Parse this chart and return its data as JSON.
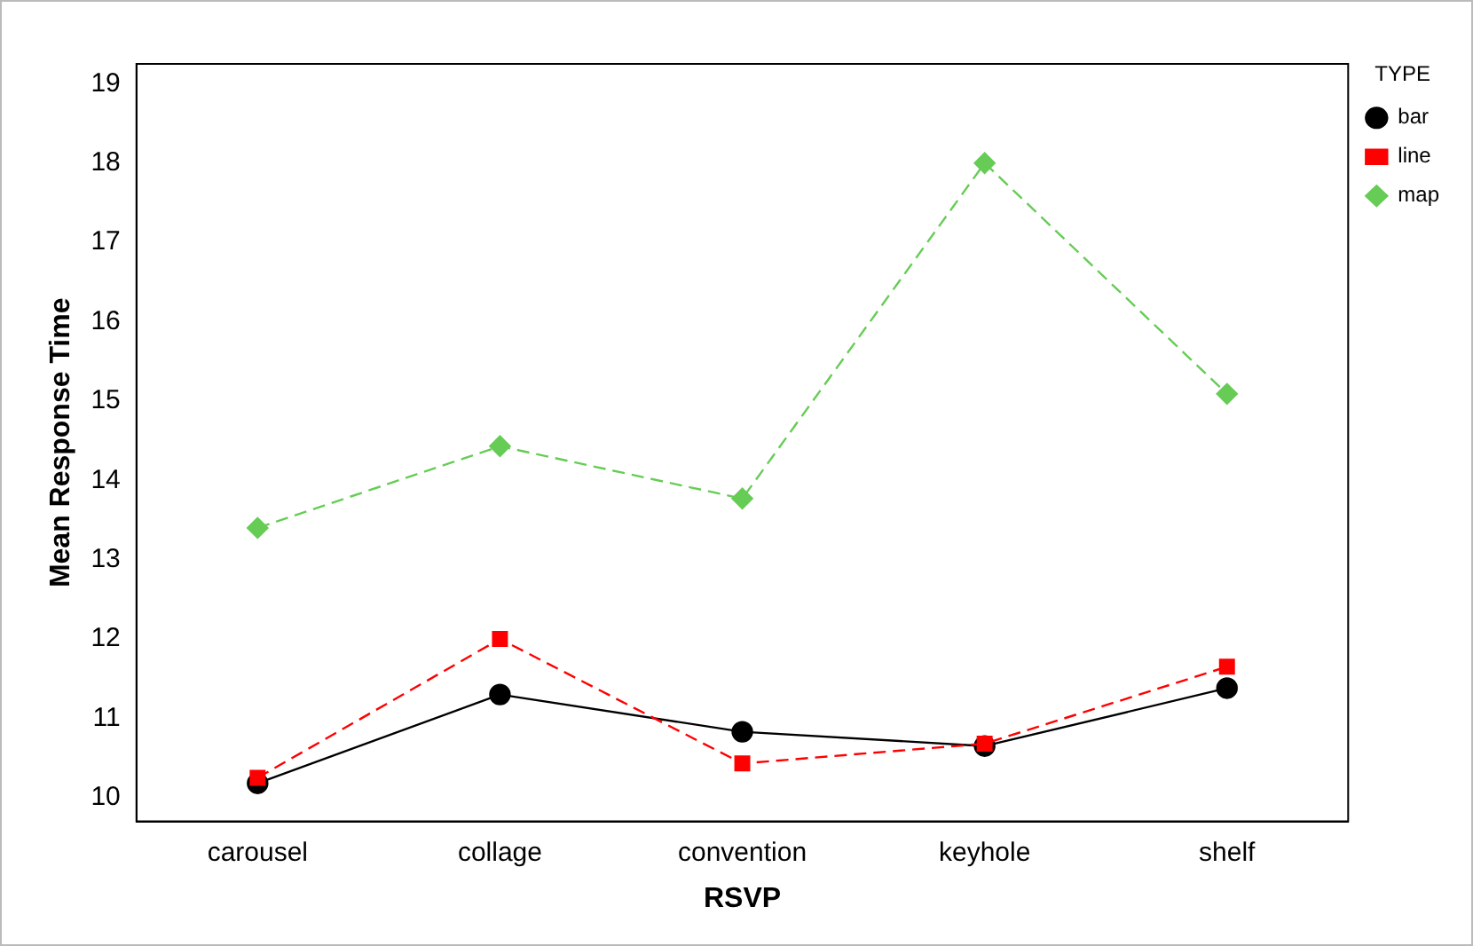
{
  "chart_data": {
    "type": "line",
    "xlabel": "RSVP",
    "ylabel": "Mean Response Time",
    "legend_title": "TYPE",
    "legend": "top right",
    "grid": false,
    "categories": [
      "carousel",
      "collage",
      "convention",
      "keyhole",
      "shelf"
    ],
    "ylim": [
      9.7,
      19.25
    ],
    "yticks": [
      10,
      11,
      12,
      13,
      14,
      15,
      16,
      17,
      18,
      19
    ],
    "series": [
      {
        "name": "bar",
        "color": "#000000",
        "marker": "circle",
        "line_style": "solid",
        "values": [
          10.18,
          11.3,
          10.83,
          10.65,
          11.38
        ]
      },
      {
        "name": "line",
        "color": "#ff0000",
        "marker": "square",
        "line_style": "dashed",
        "values": [
          10.25,
          12.0,
          10.43,
          10.68,
          11.65
        ]
      },
      {
        "name": "map",
        "color": "#66cc55",
        "marker": "diamond",
        "line_style": "dashed",
        "values": [
          13.4,
          14.43,
          13.77,
          18.0,
          15.09
        ]
      }
    ]
  }
}
